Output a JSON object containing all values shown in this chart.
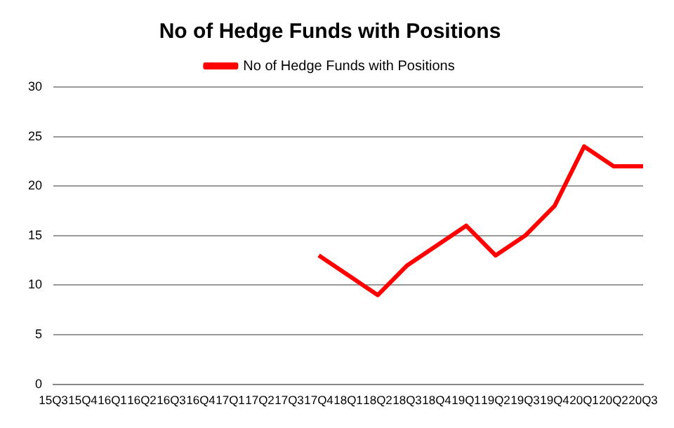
{
  "chart_data": {
    "type": "line",
    "title": "No of Hedge Funds with Positions",
    "categories": [
      "15Q3",
      "15Q4",
      "16Q1",
      "16Q2",
      "16Q3",
      "16Q4",
      "17Q1",
      "17Q2",
      "17Q3",
      "17Q4",
      "18Q1",
      "18Q2",
      "18Q3",
      "18Q4",
      "19Q1",
      "19Q2",
      "19Q3",
      "19Q4",
      "20Q1",
      "20Q2",
      "20Q3"
    ],
    "series": [
      {
        "name": "No of Hedge Funds with Positions",
        "color": "#ff0000",
        "values": [
          null,
          null,
          null,
          null,
          null,
          null,
          null,
          null,
          null,
          13,
          11,
          9,
          12,
          14,
          16,
          13,
          15,
          18,
          24,
          22,
          22
        ]
      }
    ],
    "ylim": [
      0,
      30
    ],
    "yticks": [
      0,
      5,
      10,
      15,
      20,
      25,
      30
    ],
    "grid": "y",
    "legend": "top",
    "marker": "none",
    "line_style": "solid"
  }
}
